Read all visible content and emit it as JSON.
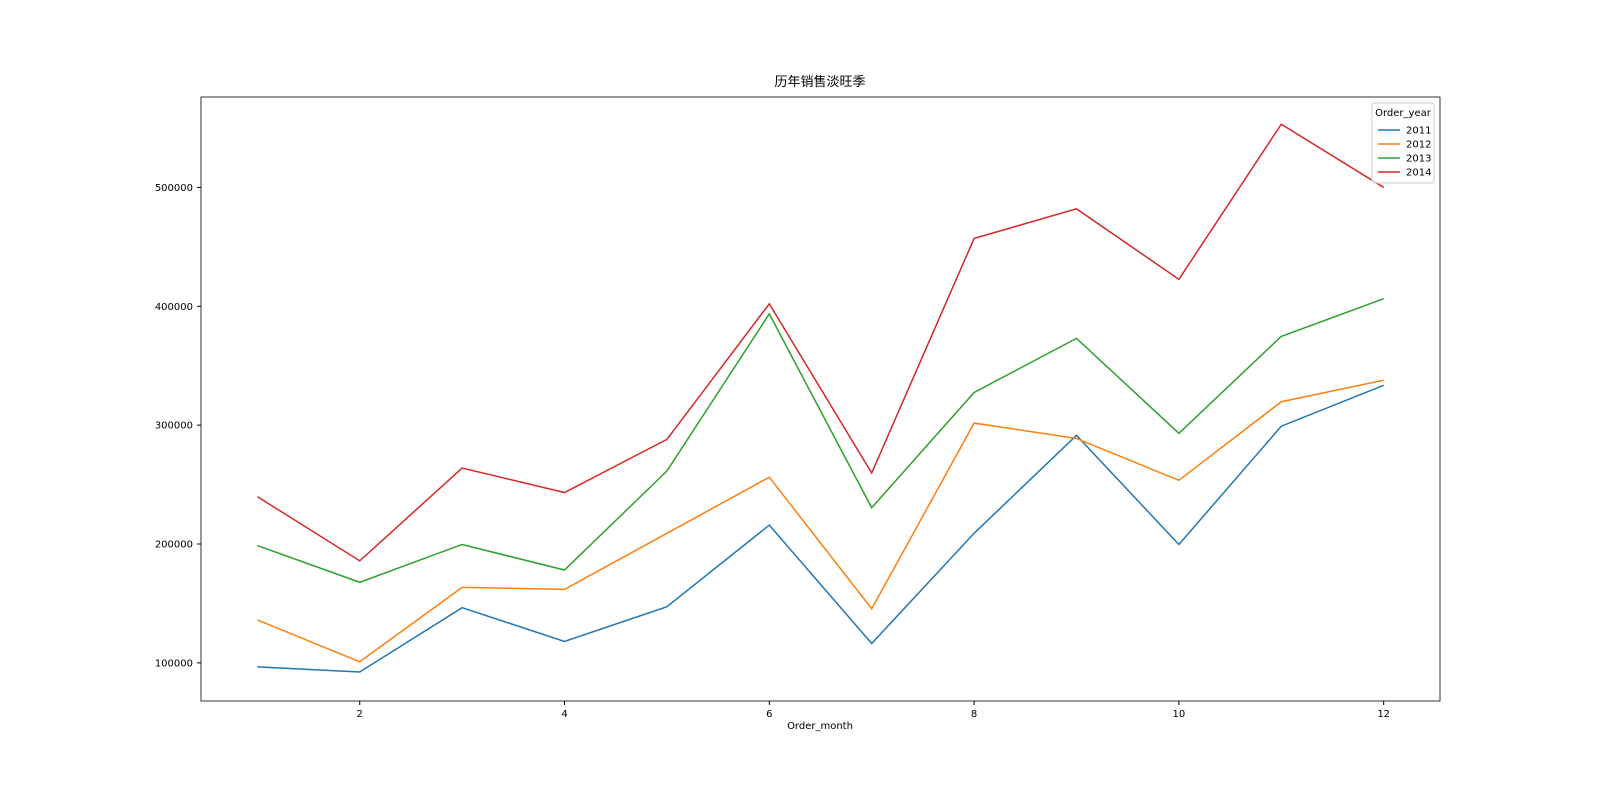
{
  "chart_data": {
    "type": "line",
    "title": "历年销售淡旺季",
    "x_label": "Order_month",
    "x": [
      1,
      2,
      3,
      4,
      5,
      6,
      7,
      8,
      9,
      10,
      11,
      12
    ],
    "xlim": [
      0.45,
      12.55
    ],
    "xticks": [
      2,
      4,
      6,
      8,
      10,
      12
    ],
    "ylim": [
      67900,
      576100
    ],
    "yticks": [
      100000,
      200000,
      300000,
      400000,
      500000
    ],
    "grid": false,
    "legend_title": "Order_year",
    "legend_position": "upper-right",
    "series": [
      {
        "name": "2011",
        "color": "#1f77b4",
        "values": [
          96600,
          92300,
          146400,
          118000,
          147200,
          215900,
          116300,
          209000,
          291400,
          199600,
          299100,
          333500
        ]
      },
      {
        "name": "2012",
        "color": "#ff7f0e",
        "values": [
          136100,
          100900,
          163500,
          161800,
          209000,
          256200,
          145500,
          301700,
          288800,
          253600,
          319700,
          337800
        ]
      },
      {
        "name": "2013",
        "color": "#2ca02c",
        "values": [
          198700,
          167800,
          199600,
          178100,
          261400,
          393600,
          230500,
          327500,
          373000,
          293100,
          374700,
          406400
        ]
      },
      {
        "name": "2014",
        "color": "#d62728",
        "values": [
          239900,
          185800,
          263900,
          243300,
          288000,
          402100,
          259700,
          457100,
          482000,
          422700,
          553200,
          500000
        ]
      }
    ]
  }
}
